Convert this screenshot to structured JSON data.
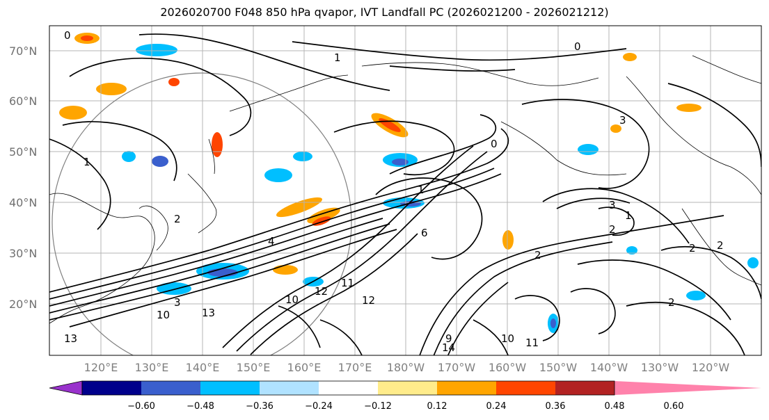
{
  "title": "2026020700 F048 850 hPa qvapor, IVT Landfall PC (2026021200 - 2026021212)",
  "lat_labels": [
    "70°N",
    "60°N",
    "50°N",
    "40°N",
    "30°N",
    "20°N"
  ],
  "lon_labels": [
    "120°E",
    "130°E",
    "140°E",
    "150°E",
    "160°E",
    "170°E",
    "180°W",
    "170°W",
    "160°W",
    "150°W",
    "140°W",
    "130°W",
    "120°W"
  ],
  "colorbar": {
    "colors": [
      "#9932cc",
      "#00008b",
      "#3a5fcd",
      "#00bfff",
      "#b0e2ff",
      "#ffffff",
      "#ffec8b",
      "#ffa500",
      "#ff4500",
      "#b22222",
      "#ff82ab"
    ],
    "tick_labels": [
      "−0.60",
      "−0.48",
      "−0.36",
      "−0.24",
      "−0.12",
      "0.12",
      "0.24",
      "0.36",
      "0.48",
      "0.60"
    ]
  },
  "contour_labels": [
    "0",
    "1",
    "0",
    "1",
    "0",
    "3",
    "2",
    "6",
    "4",
    "1",
    "3",
    "2",
    "1",
    "2",
    "2",
    "2",
    "2",
    "13",
    "11",
    "3",
    "10",
    "10",
    "12",
    "13",
    "9",
    "10",
    "14",
    "12",
    "11"
  ]
}
